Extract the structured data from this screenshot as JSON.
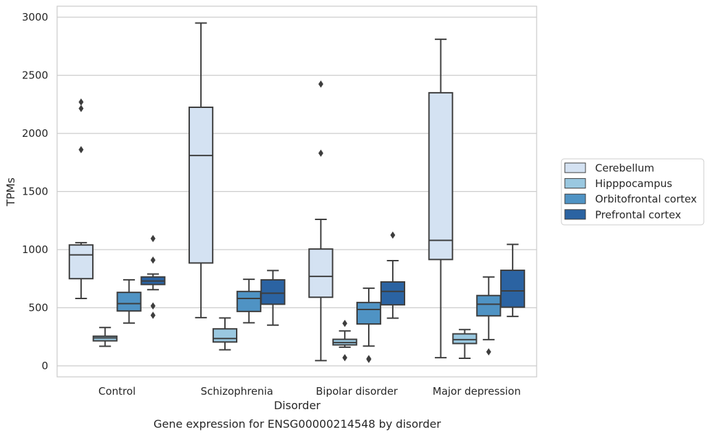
{
  "chart_data": {
    "type": "box",
    "title": "",
    "caption": "Gene expression for ENSG00000214548 by disorder",
    "xlabel": "Disorder",
    "ylabel": "TPMs",
    "ylim": [
      -95,
      3095
    ],
    "yticks": [
      0,
      500,
      1000,
      1500,
      2000,
      2500,
      3000
    ],
    "grid": true,
    "legend_position": "right",
    "categories": [
      "Control",
      "Schizophrenia",
      "Bipolar disorder",
      "Major depression"
    ],
    "series": [
      {
        "name": "Cerebellum",
        "color": "#d4e2f2",
        "boxes": [
          {
            "category": "Control",
            "whisker_low": 580,
            "q1": 750,
            "median": 955,
            "q3": 1040,
            "whisker_high": 1060,
            "outliers": [
              1860,
              2215,
              2270
            ]
          },
          {
            "category": "Schizophrenia",
            "whisker_low": 415,
            "q1": 885,
            "median": 1810,
            "q3": 2225,
            "whisker_high": 2950,
            "outliers": []
          },
          {
            "category": "Bipolar disorder",
            "whisker_low": 45,
            "q1": 590,
            "median": 770,
            "q3": 1005,
            "whisker_high": 1260,
            "outliers": [
              1830,
              2425
            ]
          },
          {
            "category": "Major depression",
            "whisker_low": 70,
            "q1": 915,
            "median": 1080,
            "q3": 2350,
            "whisker_high": 2810,
            "outliers": []
          }
        ]
      },
      {
        "name": "Hipppocampus",
        "color": "#9ac8e0",
        "boxes": [
          {
            "category": "Control",
            "whisker_low": 168,
            "q1": 215,
            "median": 240,
            "q3": 255,
            "whisker_high": 330,
            "outliers": []
          },
          {
            "category": "Schizophrenia",
            "whisker_low": 138,
            "q1": 205,
            "median": 235,
            "q3": 318,
            "whisker_high": 412,
            "outliers": []
          },
          {
            "category": "Bipolar disorder",
            "whisker_low": 160,
            "q1": 180,
            "median": 200,
            "q3": 228,
            "whisker_high": 300,
            "outliers": [
              70,
              365
            ]
          },
          {
            "category": "Major depression",
            "whisker_low": 65,
            "q1": 192,
            "median": 225,
            "q3": 275,
            "whisker_high": 312,
            "outliers": []
          }
        ]
      },
      {
        "name": "Orbitofrontal cortex",
        "color": "#4f93c4",
        "boxes": [
          {
            "category": "Control",
            "whisker_low": 368,
            "q1": 472,
            "median": 535,
            "q3": 632,
            "whisker_high": 740,
            "outliers": []
          },
          {
            "category": "Schizophrenia",
            "whisker_low": 370,
            "q1": 468,
            "median": 580,
            "q3": 640,
            "whisker_high": 745,
            "outliers": []
          },
          {
            "category": "Bipolar disorder",
            "whisker_low": 170,
            "q1": 360,
            "median": 485,
            "q3": 545,
            "whisker_high": 668,
            "outliers": [
              55,
              62
            ]
          },
          {
            "category": "Major depression",
            "whisker_low": 225,
            "q1": 430,
            "median": 530,
            "q3": 605,
            "whisker_high": 765,
            "outliers": [
              120
            ]
          }
        ]
      },
      {
        "name": "Prefrontal cortex",
        "color": "#2b63a2",
        "boxes": [
          {
            "category": "Control",
            "whisker_low": 655,
            "q1": 700,
            "median": 730,
            "q3": 765,
            "whisker_high": 790,
            "outliers": [
              435,
              515,
              910,
              1095
            ]
          },
          {
            "category": "Schizophrenia",
            "whisker_low": 350,
            "q1": 530,
            "median": 625,
            "q3": 740,
            "whisker_high": 820,
            "outliers": []
          },
          {
            "category": "Bipolar disorder",
            "whisker_low": 410,
            "q1": 525,
            "median": 640,
            "q3": 722,
            "whisker_high": 905,
            "outliers": [
              1125
            ]
          },
          {
            "category": "Major depression",
            "whisker_low": 425,
            "q1": 505,
            "median": 645,
            "q3": 822,
            "whisker_high": 1045,
            "outliers": []
          }
        ]
      }
    ]
  }
}
